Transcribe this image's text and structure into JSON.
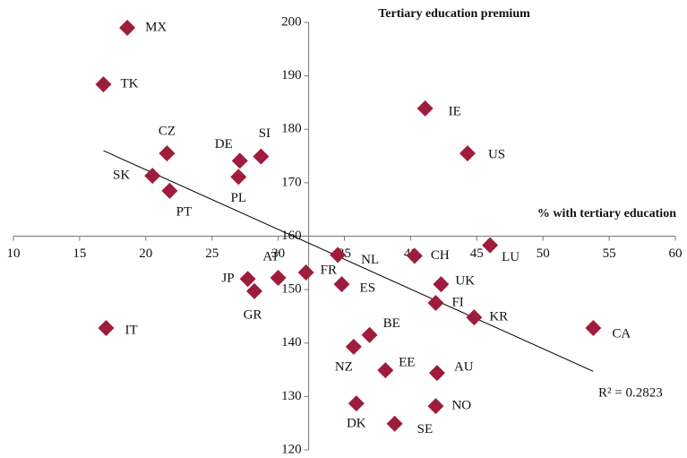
{
  "chart_data": {
    "type": "scatter",
    "y_title": "Tertiary education premium",
    "x_title": "% with tertiary education",
    "labels": [
      "MX",
      "TK",
      "CZ",
      "SK",
      "PT",
      "DE",
      "SI",
      "PL",
      "IE",
      "US",
      "CH",
      "LU",
      "NL",
      "FR",
      "AT",
      "JP",
      "GR",
      "ES",
      "UK",
      "FI",
      "KR",
      "CA",
      "IT",
      "BE",
      "NZ",
      "EE",
      "AU",
      "DK",
      "NO",
      "SE"
    ],
    "x": [
      18.6,
      16.8,
      21.6,
      20.5,
      21.8,
      27.1,
      28.7,
      27.0,
      41.1,
      44.3,
      40.3,
      46.0,
      34.5,
      32.1,
      30.0,
      27.7,
      28.2,
      34.8,
      42.3,
      41.9,
      44.8,
      53.8,
      17.0,
      36.9,
      35.7,
      38.1,
      42.0,
      35.9,
      41.9,
      38.8
    ],
    "y": [
      199.0,
      188.4,
      175.5,
      171.3,
      168.5,
      174.1,
      174.9,
      171.1,
      183.9,
      175.5,
      156.3,
      158.3,
      156.5,
      153.2,
      152.2,
      152.0,
      149.7,
      151.0,
      151.0,
      147.5,
      144.8,
      142.8,
      142.8,
      141.5,
      139.3,
      134.9,
      134.4,
      128.7,
      128.2,
      124.9
    ],
    "color": "#9e1c3c",
    "xlim": [
      10,
      60
    ],
    "xticks": [
      10,
      15,
      20,
      25,
      30,
      35,
      40,
      45,
      50,
      55,
      60
    ],
    "ylim": [
      120,
      200
    ],
    "yticks": [
      120,
      130,
      140,
      150,
      160,
      170,
      180,
      190,
      200
    ],
    "x_axis_at_y": 160,
    "y_axis_at_x": 32.3,
    "trendline": {
      "x": [
        16.8,
        53.8
      ],
      "y": [
        176.0,
        134.7
      ],
      "label": "R² = 0.2823"
    }
  }
}
